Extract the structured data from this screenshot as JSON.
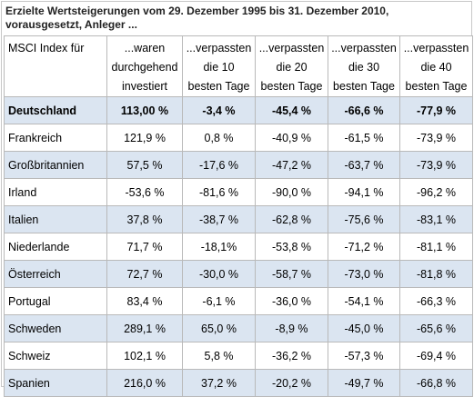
{
  "caption": {
    "line1": "Erzielte Wertsteigerungen vom 29. Dezember 1995 bis 31. Dezember 2010,",
    "line2": "vorausgesetzt, Anleger ..."
  },
  "table": {
    "headers": [
      [
        "MSCI Index für"
      ],
      [
        "...waren",
        "durchgehend",
        "investiert"
      ],
      [
        "...verpassten",
        "die 10",
        "besten Tage"
      ],
      [
        "...verpassten",
        "die 20",
        "besten Tage"
      ],
      [
        "...verpassten",
        "die 30",
        "besten Tage"
      ],
      [
        "...verpassten",
        "die 40",
        "besten Tage"
      ]
    ],
    "rows": [
      [
        "Deutschland",
        "113,00 %",
        "-3,4 %",
        "-45,4 %",
        "-66,6 %",
        "-77,9 %"
      ],
      [
        "Frankreich",
        "121,9 %",
        "0,8 %",
        "-40,9 %",
        "-61,5 %",
        "-73,9 %"
      ],
      [
        "Großbritannien",
        "57,5 %",
        "-17,6 %",
        "-47,2 %",
        "-63,7 %",
        "-73,9 %"
      ],
      [
        "Irland",
        "-53,6 %",
        "-81,6 %",
        "-90,0 %",
        "-94,1 %",
        "-96,2 %"
      ],
      [
        "Italien",
        "37,8 %",
        "-38,7 %",
        "-62,8 %",
        "-75,6 %",
        "-83,1 %"
      ],
      [
        "Niederlande",
        "71,7 %",
        "-18,1%",
        "-53,8 %",
        "-71,2 %",
        "-81,1 %"
      ],
      [
        "Österreich",
        "72,7 %",
        "-30,0 %",
        "-58,7 %",
        "-73,0 %",
        "-81,8 %"
      ],
      [
        "Portugal",
        "83,4 %",
        "-6,1 %",
        "-36,0 %",
        "-54,1 %",
        "-66,3 %"
      ],
      [
        "Schweden",
        "289,1 %",
        "65,0 %",
        "-8,9 %",
        "-45,0 %",
        "-65,6 %"
      ],
      [
        "Schweiz",
        "102,1 %",
        "5,8 %",
        "-36,2 %",
        "-57,3 %",
        "-69,4 %"
      ],
      [
        "Spanien",
        "216,0 %",
        "37,2 %",
        "-20,2 %",
        "-49,7 %",
        "-66,8 %"
      ]
    ]
  },
  "colors": {
    "row_stripe": "#dbe5f1",
    "grid": "#b9b9b9"
  }
}
